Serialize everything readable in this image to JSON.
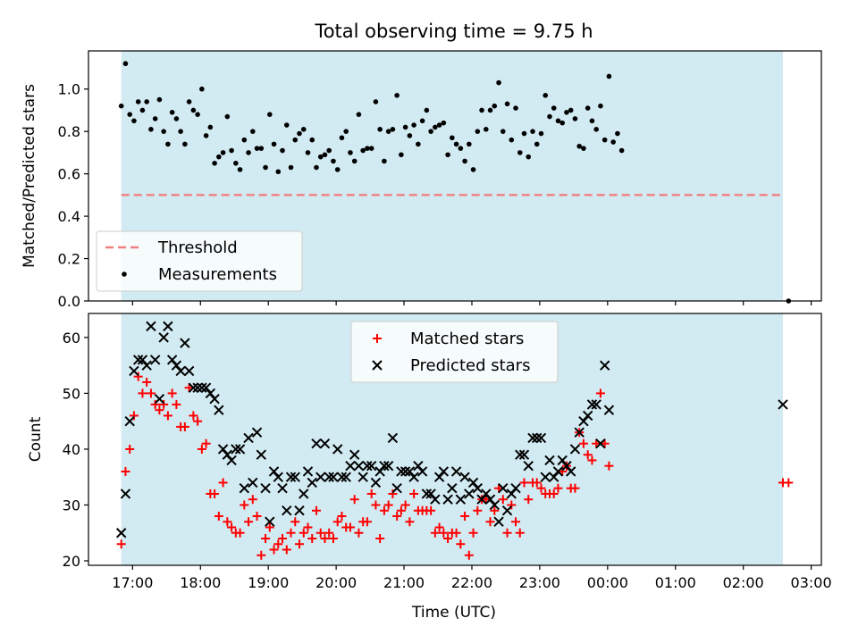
{
  "title": "Total observing time = 9.75 h",
  "xlabel": "Time (UTC)",
  "x_ticks": [
    "17:00",
    "18:00",
    "19:00",
    "20:00",
    "21:00",
    "22:00",
    "23:00",
    "00:00",
    "01:00",
    "02:00",
    "03:00"
  ],
  "colors": {
    "shade": "#add8e6",
    "threshold": "#f08080",
    "measurements": "#000000",
    "matched": "#ff0000",
    "predicted": "#000000"
  },
  "chart_data": [
    {
      "type": "scatter",
      "ylabel": "Matched/Predicted stars",
      "ylim": [
        0,
        1.18
      ],
      "yticks": [
        "0.0",
        "0.2",
        "0.4",
        "0.6",
        "0.8",
        "1.0"
      ],
      "xlim_hours": [
        16.35,
        27.15
      ],
      "shaded_span": [
        "16:50",
        "02:35"
      ],
      "threshold": 0.5,
      "legend_position": "lower-left",
      "legend": [
        "Threshold",
        "Measurements"
      ],
      "x_start": "16:50",
      "x_step_hours": 0.0625,
      "values": [
        0.92,
        1.12,
        0.88,
        0.85,
        0.94,
        0.9,
        0.94,
        0.81,
        0.86,
        0.95,
        0.8,
        0.74,
        0.89,
        0.86,
        0.8,
        0.74,
        0.94,
        0.9,
        0.88,
        1.0,
        0.78,
        0.82,
        0.65,
        0.68,
        0.7,
        0.87,
        0.71,
        0.65,
        0.62,
        0.76,
        0.7,
        0.8,
        0.72,
        0.72,
        0.63,
        0.88,
        0.74,
        0.61,
        0.71,
        0.83,
        0.63,
        0.76,
        0.79,
        0.81,
        0.7,
        0.76,
        0.63,
        0.68,
        0.69,
        0.71,
        0.66,
        0.62,
        0.77,
        0.8,
        0.7,
        0.66,
        0.88,
        0.71,
        0.72,
        0.72,
        0.94,
        0.81,
        0.66,
        0.8,
        0.81,
        0.97,
        0.69,
        0.82,
        0.78,
        0.83,
        0.74,
        0.85,
        0.9,
        0.8,
        0.82,
        0.83,
        0.84,
        0.69,
        0.77,
        0.74,
        0.72,
        0.66,
        0.74,
        0.62,
        0.8,
        0.9,
        0.81,
        0.9,
        0.92,
        1.03,
        0.8,
        0.93,
        0.76,
        0.91,
        0.7,
        0.79,
        0.68,
        0.8,
        0.74,
        0.79,
        0.97,
        0.87,
        0.91,
        0.85,
        0.84,
        0.89,
        0.9,
        0.86,
        0.73,
        0.72,
        0.91,
        0.85,
        0.81,
        0.92,
        0.76,
        1.06,
        0.75,
        0.79,
        0.71
      ],
      "outlier": {
        "x": "02:40",
        "y": 0.0
      }
    },
    {
      "type": "scatter",
      "ylabel": "Count",
      "ylim": [
        19.2,
        64.3
      ],
      "yticks": [
        "20",
        "30",
        "40",
        "50",
        "60"
      ],
      "xlim_hours": [
        16.35,
        27.15
      ],
      "shaded_span": [
        "16:50",
        "02:35"
      ],
      "legend_position": "upper-center",
      "x_start": "16:50",
      "x_step_hours": 0.0625,
      "series": [
        {
          "name": "Matched stars",
          "marker": "+",
          "values": [
            23,
            36,
            40,
            46,
            53,
            50,
            52,
            50,
            48,
            47,
            48,
            46,
            50,
            48,
            44,
            44,
            51,
            46,
            45,
            40,
            41,
            32,
            32,
            28,
            34,
            27,
            26,
            25,
            25,
            30,
            27,
            31,
            28,
            21,
            24,
            26,
            22,
            23,
            24,
            22,
            25,
            27,
            23,
            25,
            26,
            24,
            29,
            25,
            24,
            25,
            24,
            27,
            28,
            26,
            26,
            31,
            25,
            27,
            27,
            32,
            30,
            24,
            29,
            30,
            32,
            28,
            29,
            30,
            27,
            32,
            29,
            29,
            29,
            29,
            25,
            26,
            25,
            24,
            25,
            25,
            23,
            28,
            21,
            25,
            29,
            31,
            31,
            27,
            29,
            33,
            31,
            25,
            30,
            27,
            25,
            34,
            31,
            34,
            34,
            33,
            32,
            32,
            32,
            33,
            36,
            37,
            33,
            33,
            43,
            41,
            39,
            38,
            41,
            50,
            41,
            37,
            34,
            34
          ],
          "tail_x": [
            "02:35",
            "02:40"
          ]
        },
        {
          "name": "Predicted stars",
          "marker": "x",
          "values": [
            25,
            32,
            45,
            54,
            56,
            56,
            55,
            62,
            56,
            49,
            60,
            62,
            56,
            55,
            54,
            59,
            54,
            51,
            51,
            51,
            51,
            50,
            49,
            47,
            40,
            39,
            38,
            40,
            40,
            33,
            42,
            34,
            43,
            39,
            33,
            27,
            36,
            35,
            33,
            29,
            35,
            35,
            29,
            32,
            36,
            34,
            41,
            35,
            41,
            35,
            35,
            40,
            35,
            35,
            37,
            39,
            37,
            35,
            37,
            37,
            34,
            36,
            37,
            37,
            42,
            33,
            36,
            36,
            36,
            35,
            37,
            36,
            32,
            32,
            31,
            35,
            36,
            31,
            33,
            36,
            31,
            35,
            32,
            34,
            33,
            31,
            32,
            31,
            30,
            27,
            33,
            29,
            32,
            33,
            39,
            39,
            37,
            42,
            42,
            42,
            35,
            38,
            35,
            36,
            38,
            37,
            36,
            40,
            43,
            45,
            46,
            48,
            48,
            41,
            55,
            47,
            48
          ],
          "tail_x": [
            "02:35"
          ]
        }
      ]
    }
  ]
}
